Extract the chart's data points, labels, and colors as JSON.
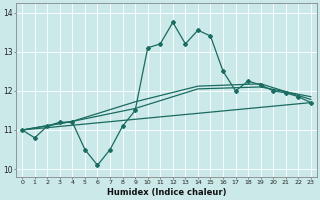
{
  "xlabel": "Humidex (Indice chaleur)",
  "ylabel": "",
  "background_color": "#cce9e9",
  "grid_color": "#ffffff",
  "line_color": "#1a6b60",
  "xlim": [
    -0.5,
    23.5
  ],
  "ylim": [
    9.8,
    14.25
  ],
  "yticks": [
    10,
    11,
    12,
    13,
    14
  ],
  "xticks": [
    0,
    1,
    2,
    3,
    4,
    5,
    6,
    7,
    8,
    9,
    10,
    11,
    12,
    13,
    14,
    15,
    16,
    17,
    18,
    19,
    20,
    21,
    22,
    23
  ],
  "line1_x": [
    0,
    1,
    2,
    3,
    4,
    5,
    6,
    7,
    8,
    9,
    10,
    11,
    12,
    13,
    14,
    15,
    16,
    17,
    18,
    19,
    20,
    21,
    22,
    23
  ],
  "line1_y": [
    11.0,
    10.8,
    11.1,
    11.2,
    11.2,
    10.5,
    10.1,
    10.5,
    11.1,
    11.5,
    13.1,
    13.2,
    13.75,
    13.2,
    13.55,
    13.4,
    12.5,
    12.0,
    12.25,
    12.15,
    12.0,
    11.95,
    11.85,
    11.7
  ],
  "line2_x": [
    0,
    23
  ],
  "line2_y": [
    11.0,
    11.7
  ],
  "line3_x": [
    0,
    4,
    9,
    14,
    19,
    23
  ],
  "line3_y": [
    11.0,
    11.22,
    11.55,
    12.05,
    12.1,
    11.85
  ],
  "line4_x": [
    0,
    4,
    9,
    14,
    19,
    23
  ],
  "line4_y": [
    11.0,
    11.22,
    11.72,
    12.12,
    12.18,
    11.78
  ]
}
